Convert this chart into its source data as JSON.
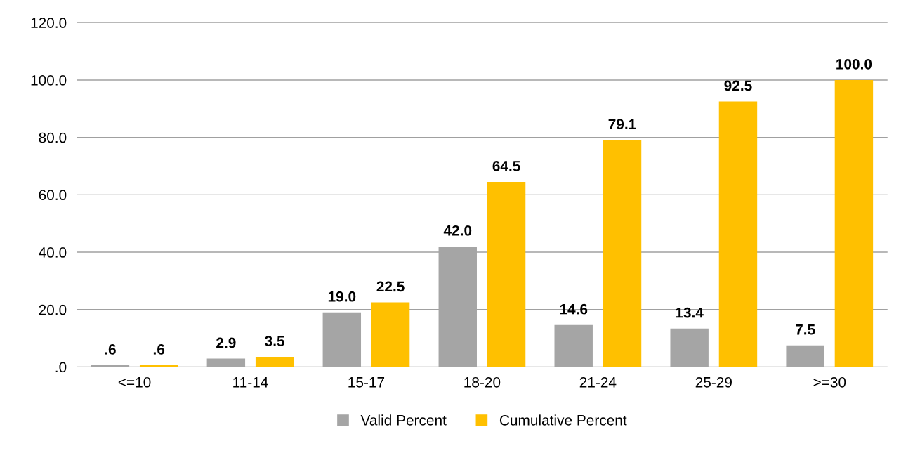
{
  "chart_data": {
    "type": "bar",
    "categories": [
      "<=10",
      "11-14",
      "15-17",
      "18-20",
      "21-24",
      "25-29",
      ">=30"
    ],
    "series": [
      {
        "name": "Valid Percent",
        "color": "#a5a5a5",
        "values": [
          0.6,
          2.9,
          19.0,
          42.0,
          14.6,
          13.4,
          7.5
        ],
        "value_labels": [
          ".6",
          "2.9",
          "19.0",
          "42.0",
          "14.6",
          "13.4",
          "7.5"
        ]
      },
      {
        "name": "Cumulative Percent",
        "color": "#ffc000",
        "values": [
          0.6,
          3.5,
          22.5,
          64.5,
          79.1,
          92.5,
          100.0
        ],
        "value_labels": [
          ".6",
          "3.5",
          "22.5",
          "64.5",
          "79.1",
          "92.5",
          "100.0"
        ]
      }
    ],
    "ylim": [
      0,
      120
    ],
    "yticks": [
      {
        "value": 0,
        "label": ".0"
      },
      {
        "value": 20,
        "label": "20.0"
      },
      {
        "value": 40,
        "label": "40.0"
      },
      {
        "value": 60,
        "label": "60.0"
      },
      {
        "value": 80,
        "label": "80.0"
      },
      {
        "value": 100,
        "label": "100.0"
      },
      {
        "value": 120,
        "label": "120.0"
      }
    ],
    "grid": "y",
    "legend": "bottom"
  }
}
